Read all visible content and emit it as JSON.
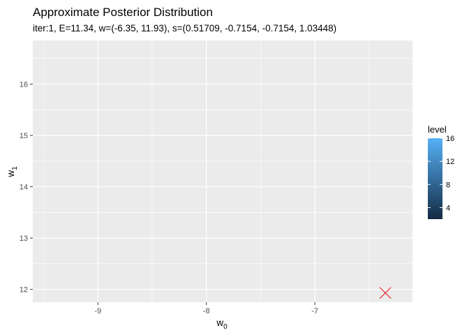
{
  "chart_data": {
    "type": "heatmap",
    "title": "Approximate Posterior Distribution",
    "subtitle": "iter:1, E=11.34, w=(-6.35, 11.93), s=(0.51709, -0.7154, -0.7154, 1.03448)",
    "xlabel_main": "w",
    "xlabel_sub": "0",
    "ylabel_main": "w",
    "ylabel_sub": "1",
    "xlim": [
      -9.6,
      -6.1
    ],
    "ylim": [
      11.75,
      16.85
    ],
    "x_ticks": [
      -9,
      -8,
      -7
    ],
    "y_ticks": [
      12,
      13,
      14,
      15,
      16
    ],
    "grid": true,
    "point": {
      "x": -6.35,
      "y": 11.93,
      "marker": "x",
      "color": "#e31a1c"
    },
    "legend": {
      "title": "level",
      "position": "right",
      "range": [
        2,
        16
      ],
      "breaks": [
        4,
        8,
        12,
        16
      ],
      "color_low": "#132b43",
      "color_high": "#56b1f7"
    }
  },
  "colors": {
    "panel_background": "#ebebeb",
    "grid_line": "#ffffff"
  }
}
